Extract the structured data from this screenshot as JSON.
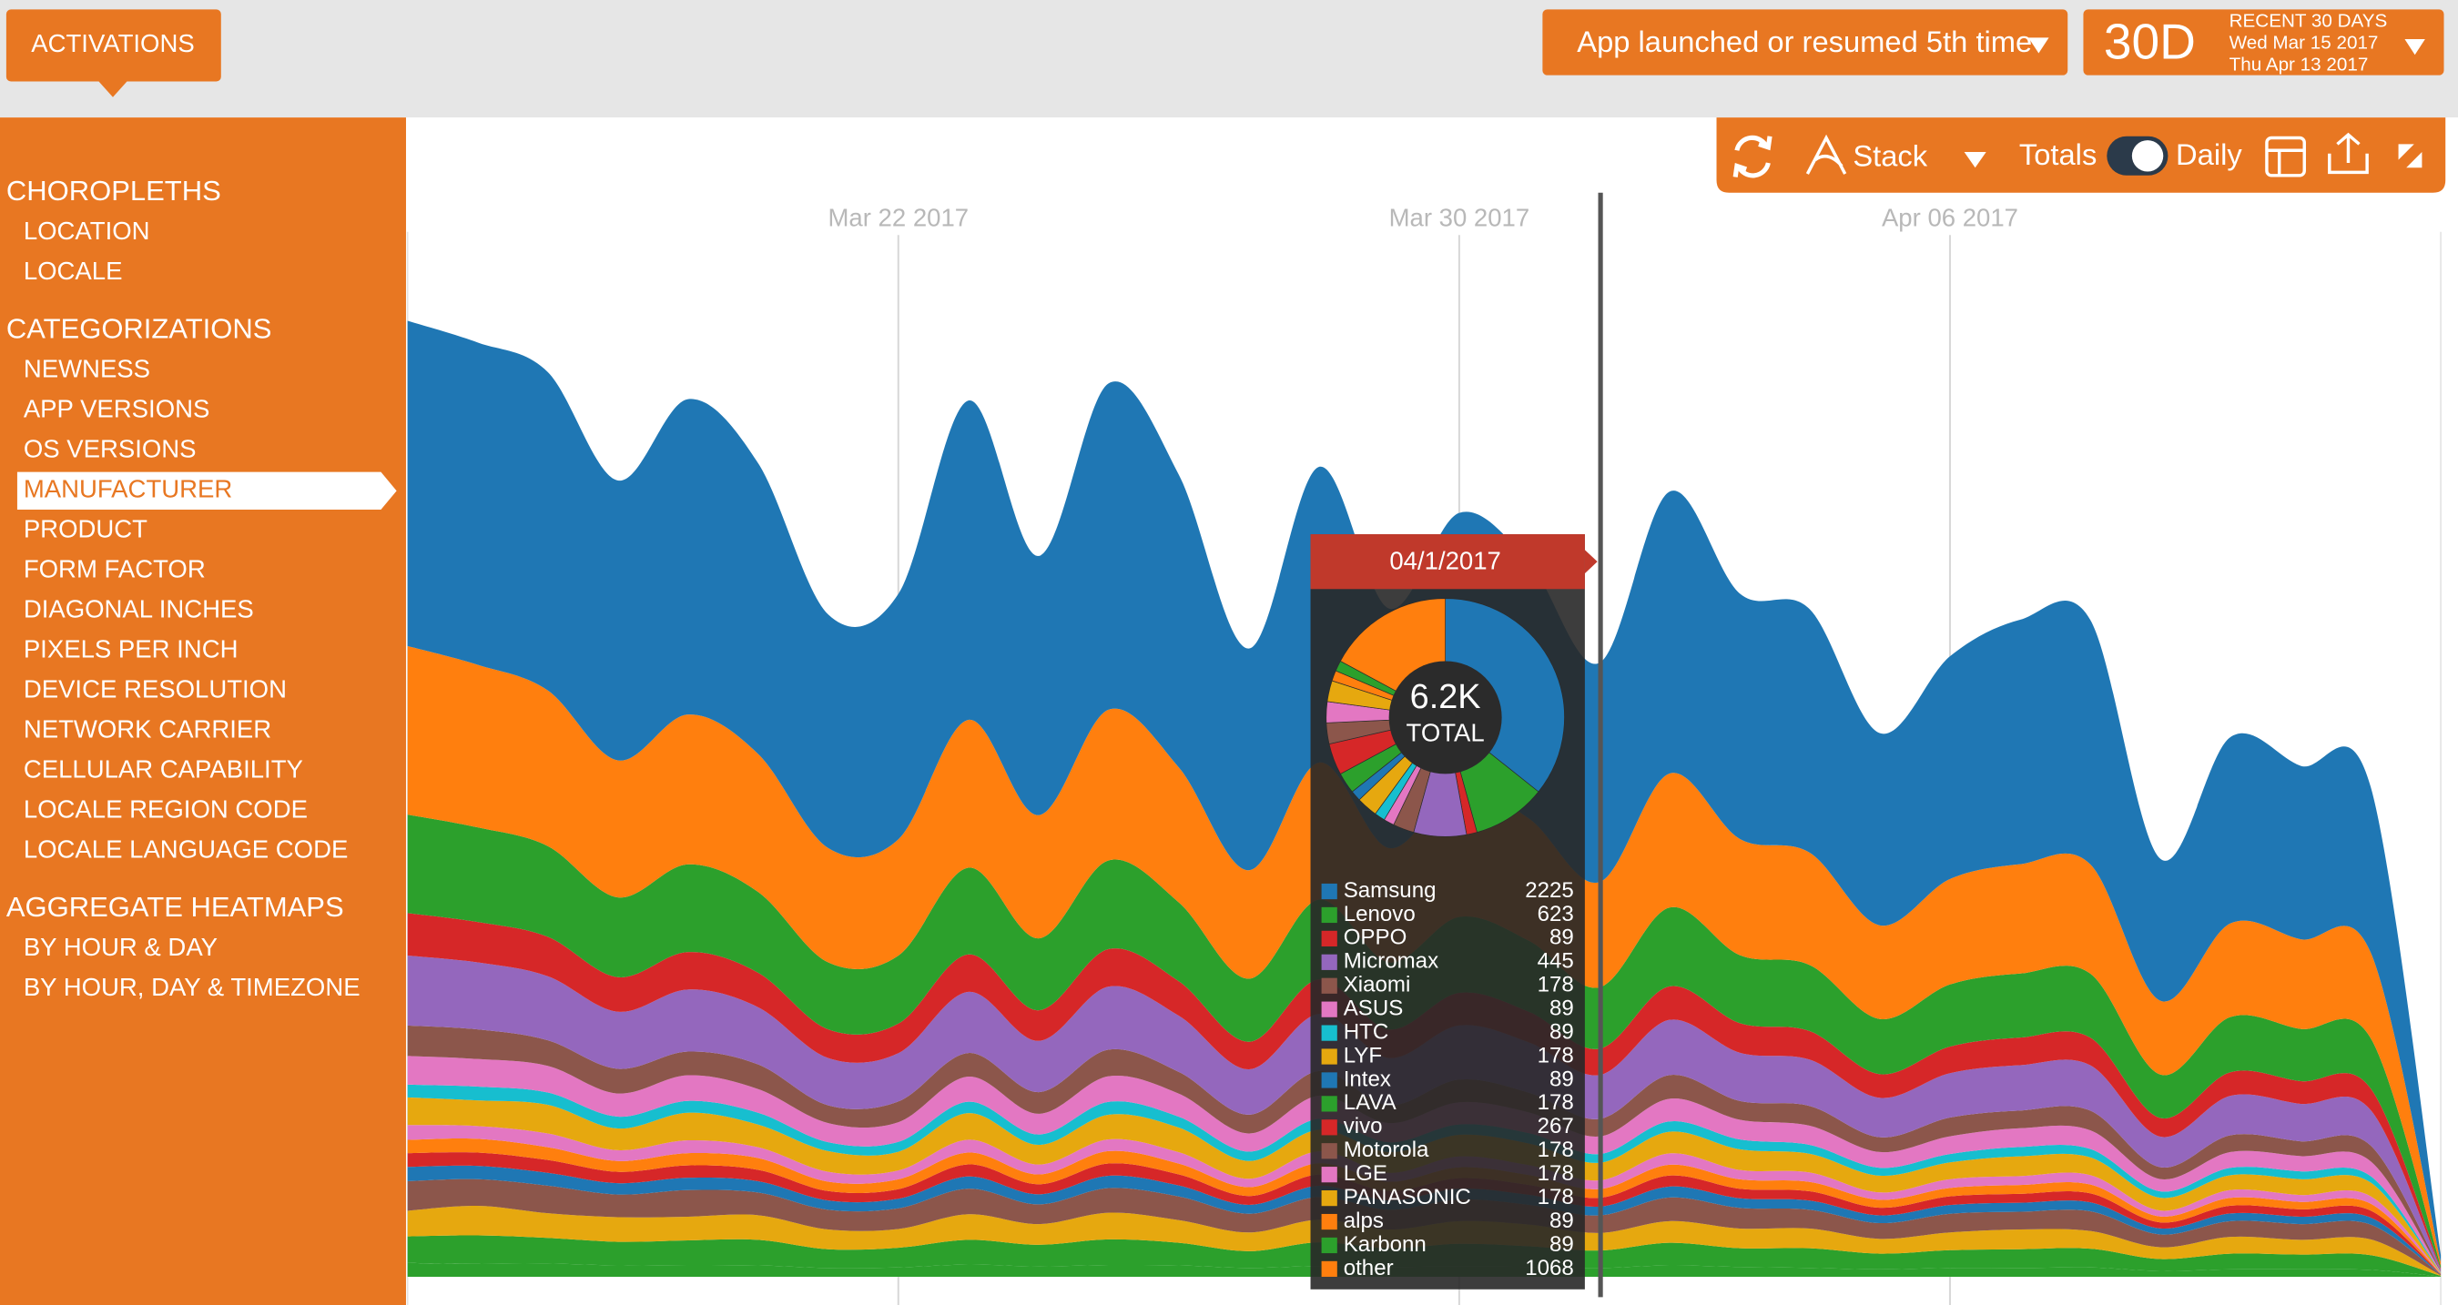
{
  "header": {
    "button": "ACTIVATIONS",
    "event": "App launched or resumed 5th time",
    "range": "30D",
    "range_label": "RECENT 30 DAYS",
    "start": "Wed Mar 15 2017",
    "end": "Thu Apr 13 2017"
  },
  "toolbar": {
    "mode": "Stack",
    "totals": "Totals",
    "daily": "Daily"
  },
  "sidebar": {
    "selected": [
      1,
      3
    ],
    "sections": [
      {
        "title": "CHOROPLETHS",
        "items": [
          "LOCATION",
          "LOCALE"
        ]
      },
      {
        "title": "CATEGORIZATIONS",
        "items": [
          "NEWNESS",
          "APP VERSIONS",
          "OS VERSIONS",
          "MANUFACTURER",
          "PRODUCT",
          "FORM FACTOR",
          "DIAGONAL INCHES",
          "PIXELS PER INCH",
          "DEVICE RESOLUTION",
          "NETWORK CARRIER",
          "CELLULAR CAPABILITY",
          "LOCALE REGION CODE",
          "LOCALE LANGUAGE CODE"
        ]
      },
      {
        "title": "AGGREGATE HEATMAPS",
        "items": [
          "BY HOUR & DAY",
          "BY HOUR, DAY & TIMEZONE"
        ]
      }
    ]
  },
  "chart_data": [
    {
      "type": "area",
      "stacked": true,
      "x": [
        "Mar 15 2017",
        "Mar 16 2017",
        "Mar 17 2017",
        "Mar 18 2017",
        "Mar 19 2017",
        "Mar 20 2017",
        "Mar 21 2017",
        "Mar 22 2017",
        "Mar 23 2017",
        "Mar 24 2017",
        "Mar 25 2017",
        "Mar 26 2017",
        "Mar 27 2017",
        "Mar 28 2017",
        "Mar 29 2017",
        "Mar 30 2017",
        "Mar 31 2017",
        "Apr 01 2017",
        "Apr 02 2017",
        "Apr 03 2017",
        "Apr 04 2017",
        "Apr 05 2017",
        "Apr 06 2017",
        "Apr 07 2017",
        "Apr 08 2017",
        "Apr 09 2017",
        "Apr 10 2017",
        "Apr 11 2017",
        "Apr 12 2017",
        "Apr 13 2017"
      ],
      "xticks": [
        "Mar 22 2017",
        "Mar 30 2017",
        "Apr 06 2017"
      ],
      "ylim": [
        0,
        11000
      ],
      "series": [
        {
          "name": "Samsung",
          "color": "#1f77b4",
          "values": [
            3300,
            3270,
            3230,
            2840,
            3200,
            2950,
            2370,
            2490,
            3240,
            2630,
            3310,
            2970,
            2250,
            3000,
            2430,
            2780,
            2600,
            2225,
            2860,
            2490,
            2470,
            1950,
            2260,
            2480,
            2480,
            1440,
            1890,
            1760,
            1680,
            70
          ]
        },
        {
          "name": "other",
          "color": "#ff7f0e",
          "values": [
            1710,
            1650,
            1580,
            1390,
            1520,
            1400,
            1160,
            1180,
            1500,
            1250,
            1530,
            1370,
            1100,
            1390,
            1160,
            1320,
            1240,
            1068,
            1360,
            1180,
            1140,
            950,
            1070,
            1110,
            1110,
            750,
            950,
            910,
            870,
            40
          ]
        },
        {
          "name": "Lenovo",
          "color": "#2ca02c",
          "values": [
            1000,
            960,
            920,
            810,
            890,
            820,
            680,
            690,
            880,
            730,
            900,
            800,
            640,
            810,
            680,
            770,
            720,
            623,
            800,
            690,
            670,
            560,
            630,
            650,
            650,
            440,
            560,
            530,
            510,
            24
          ]
        },
        {
          "name": "vivo",
          "color": "#d62728",
          "values": [
            430,
            410,
            400,
            350,
            380,
            350,
            290,
            300,
            380,
            310,
            380,
            350,
            280,
            350,
            290,
            330,
            310,
            267,
            340,
            300,
            290,
            240,
            270,
            280,
            280,
            190,
            240,
            230,
            220,
            10
          ]
        },
        {
          "name": "Micromax",
          "color": "#9467bd",
          "values": [
            710,
            680,
            650,
            580,
            630,
            580,
            480,
            490,
            620,
            520,
            640,
            570,
            460,
            580,
            480,
            550,
            510,
            445,
            560,
            490,
            470,
            400,
            450,
            460,
            460,
            310,
            400,
            380,
            360,
            17
          ]
        },
        {
          "name": "Xiaomi",
          "color": "#8c564b",
          "values": [
            310,
            300,
            260,
            250,
            240,
            250,
            180,
            210,
            240,
            220,
            270,
            220,
            190,
            250,
            180,
            230,
            200,
            178,
            240,
            190,
            200,
            150,
            190,
            180,
            200,
            120,
            170,
            150,
            160,
            8
          ]
        },
        {
          "name": "LGE",
          "color": "#e377c2",
          "values": [
            290,
            280,
            270,
            235,
            260,
            240,
            195,
            200,
            255,
            210,
            260,
            235,
            185,
            235,
            195,
            225,
            210,
            178,
            230,
            200,
            195,
            160,
            180,
            190,
            190,
            125,
            160,
            155,
            150,
            7
          ]
        },
        {
          "name": "HTC",
          "color": "#17becf",
          "values": [
            130,
            140,
            125,
            120,
            120,
            120,
            90,
            100,
            115,
            105,
            130,
            110,
            95,
            110,
            100,
            105,
            105,
            89,
            105,
            100,
            90,
            80,
            85,
            95,
            85,
            65,
            75,
            80,
            65,
            4
          ]
        },
        {
          "name": "LYF",
          "color": "#e6a80f",
          "values": [
            280,
            260,
            290,
            220,
            280,
            230,
            210,
            190,
            270,
            200,
            250,
            250,
            180,
            220,
            210,
            220,
            220,
            178,
            220,
            210,
            190,
            170,
            170,
            200,
            180,
            130,
            150,
            160,
            140,
            6
          ]
        },
        {
          "name": "ASUS",
          "color": "#e377c2",
          "values": [
            150,
            130,
            140,
            110,
            130,
            110,
            100,
            90,
            130,
            100,
            120,
            115,
            85,
            120,
            90,
            110,
            100,
            89,
            115,
            95,
            95,
            75,
            90,
            90,
            95,
            60,
            80,
            70,
            75,
            3
          ]
        },
        {
          "name": "alps",
          "color": "#ff7f0e",
          "values": [
            135,
            140,
            130,
            110,
            125,
            120,
            95,
            100,
            120,
            100,
            125,
            110,
            90,
            115,
            95,
            110,
            100,
            89,
            110,
            95,
            95,
            80,
            85,
            90,
            90,
            60,
            80,
            75,
            70,
            3
          ]
        },
        {
          "name": "OPPO",
          "color": "#d62728",
          "values": [
            140,
            135,
            130,
            115,
            125,
            115,
            95,
            97,
            123,
            102,
            125,
            112,
            90,
            114,
            95,
            108,
            101,
            89,
            111,
            97,
            94,
            78,
            88,
            91,
            91,
            61,
            78,
            75,
            71,
            3
          ]
        },
        {
          "name": "Intex",
          "color": "#1f77b4",
          "values": [
            145,
            135,
            130,
            115,
            125,
            115,
            95,
            97,
            123,
            102,
            125,
            112,
            90,
            114,
            95,
            108,
            101,
            89,
            111,
            97,
            94,
            78,
            88,
            91,
            91,
            61,
            78,
            75,
            71,
            3
          ]
        },
        {
          "name": "Motorola",
          "color": "#8c564b",
          "values": [
            300,
            270,
            280,
            230,
            270,
            230,
            200,
            210,
            260,
            200,
            250,
            240,
            190,
            230,
            200,
            220,
            200,
            178,
            240,
            210,
            190,
            160,
            190,
            180,
            200,
            130,
            160,
            160,
            150,
            7
          ]
        },
        {
          "name": "PANASONIC",
          "color": "#e6a80f",
          "values": [
            260,
            300,
            250,
            250,
            240,
            250,
            200,
            190,
            260,
            210,
            270,
            230,
            190,
            230,
            190,
            230,
            220,
            178,
            220,
            200,
            200,
            150,
            180,
            200,
            180,
            120,
            170,
            150,
            160,
            6
          ]
        },
        {
          "name": "LAVA",
          "color": "#2ca02c",
          "values": [
            270,
            290,
            260,
            240,
            250,
            260,
            190,
            200,
            250,
            220,
            260,
            230,
            170,
            240,
            190,
            230,
            210,
            178,
            230,
            190,
            200,
            160,
            180,
            190,
            190,
            120,
            160,
            150,
            150,
            7
          ]
        },
        {
          "name": "Karbonn",
          "color": "#2ca02c",
          "values": [
            140,
            130,
            135,
            115,
            120,
            115,
            90,
            95,
            125,
            105,
            120,
            115,
            90,
            110,
            100,
            105,
            100,
            89,
            115,
            100,
            90,
            75,
            90,
            90,
            95,
            60,
            75,
            75,
            70,
            3
          ]
        }
      ]
    },
    {
      "type": "pie",
      "title": "04/1/2017",
      "center_label": "6.2K",
      "center_sublabel": "TOTAL",
      "categories": [
        "Samsung",
        "Lenovo",
        "OPPO",
        "Micromax",
        "Xiaomi",
        "ASUS",
        "HTC",
        "LYF",
        "Intex",
        "LAVA",
        "vivo",
        "Motorola",
        "LGE",
        "PANASONIC",
        "alps",
        "Karbonn",
        "other"
      ],
      "values": [
        2225,
        623,
        89,
        445,
        178,
        89,
        89,
        178,
        89,
        178,
        267,
        178,
        178,
        178,
        89,
        89,
        1068
      ],
      "colors": [
        "#1f77b4",
        "#2ca02c",
        "#d62728",
        "#9467bd",
        "#8c564b",
        "#e377c2",
        "#17becf",
        "#e6a80f",
        "#1f77b4",
        "#2ca02c",
        "#d62728",
        "#8c564b",
        "#e377c2",
        "#e6a80f",
        "#ff7f0e",
        "#2ca02c",
        "#ff7f0e"
      ]
    }
  ]
}
